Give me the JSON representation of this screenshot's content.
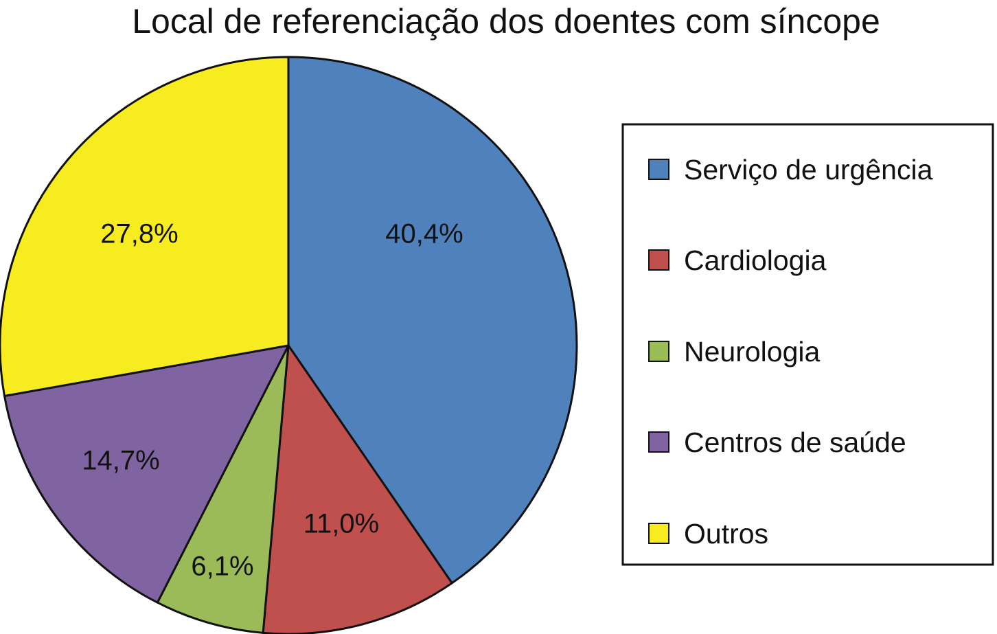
{
  "chart_data": {
    "type": "pie",
    "title": "Local de referenciação dos doentes com síncope",
    "categories": [
      "Serviço de urgência",
      "Cardiologia",
      "Neurologia",
      "Centros de saúde",
      "Outros"
    ],
    "values": [
      40.4,
      11.0,
      6.1,
      14.7,
      27.8
    ],
    "data_labels": [
      "40,4%",
      "11,0%",
      "6,1%",
      "14,7%",
      "27,8%"
    ],
    "colors": [
      "#4f81bd",
      "#c0504d",
      "#9bbb59",
      "#8064a2",
      "#f7ec1f"
    ],
    "start_angle": "12 o'clock",
    "direction": "clockwise",
    "legend_position": "right"
  }
}
